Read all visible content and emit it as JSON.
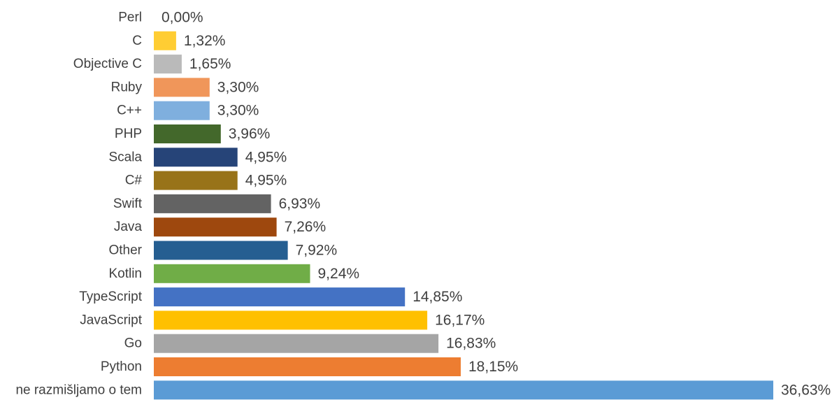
{
  "chart_data": {
    "type": "bar",
    "orientation": "horizontal",
    "title": "",
    "xlabel": "",
    "ylabel": "",
    "grid": false,
    "legend": "none",
    "xlim": [
      0,
      36.63
    ],
    "categories": [
      "Perl",
      "C",
      "Objective C",
      "Ruby",
      "C++",
      "PHP",
      "Scala",
      "C#",
      "Swift",
      "Java",
      "Other",
      "Kotlin",
      "TypeScript",
      "JavaScript",
      "Go",
      "Python",
      "ne razmišljamo o tem"
    ],
    "values": [
      0.0,
      1.32,
      1.65,
      3.3,
      3.3,
      3.96,
      4.95,
      4.95,
      6.93,
      7.26,
      7.92,
      9.24,
      14.85,
      16.17,
      16.83,
      18.15,
      36.63
    ],
    "value_labels": [
      "0,00%",
      "1,32%",
      "1,65%",
      "3,30%",
      "3,30%",
      "3,96%",
      "4,95%",
      "4,95%",
      "6,93%",
      "7,26%",
      "7,92%",
      "9,24%",
      "14,85%",
      "16,17%",
      "16,83%",
      "18,15%",
      "36,63%"
    ],
    "colors": [
      "#5B9BD5",
      "#FFCD33",
      "#BABABA",
      "#F0965A",
      "#7FAFDE",
      "#43682B",
      "#264478",
      "#987319",
      "#636363",
      "#9E480E",
      "#255E91",
      "#70AD47",
      "#4472C4",
      "#FFC000",
      "#A5A5A5",
      "#ED7D31",
      "#5B9BD5"
    ]
  }
}
